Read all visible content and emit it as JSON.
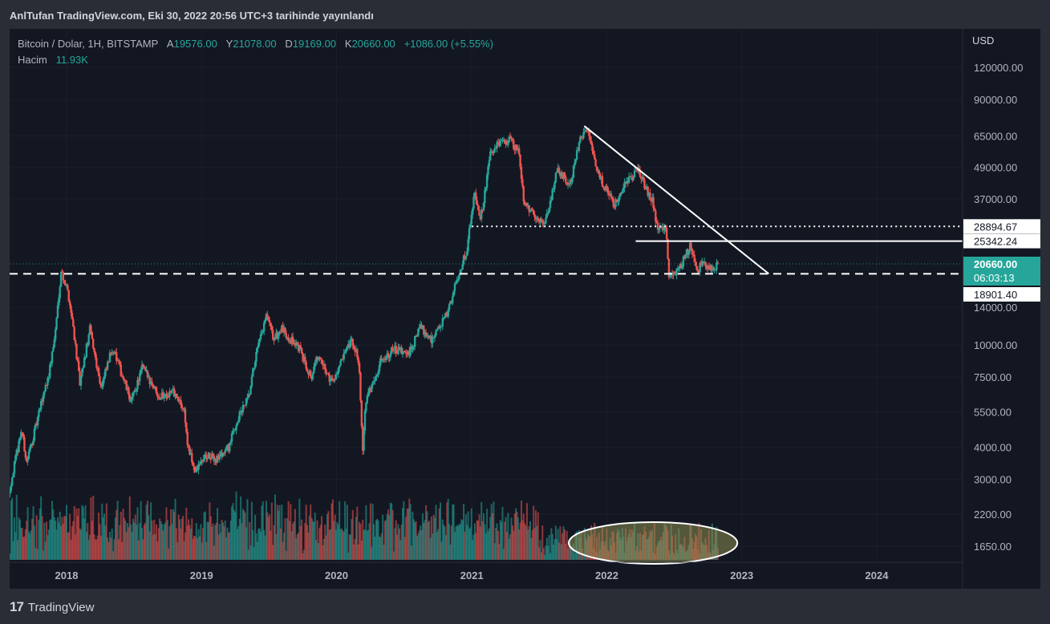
{
  "header": {
    "publisher": "AnlTufan TradingView.com, Eki 30, 2022 20:56 UTC+3 tarihinde yayınlandı"
  },
  "legend": {
    "symbol": "Bitcoin / Dolar, 1H, BITSTAMP",
    "open_label": "A",
    "open": "19576.00",
    "high_label": "Y",
    "high": "21078.00",
    "low_label": "D",
    "low": "19169.00",
    "close_label": "K",
    "close": "20660.00",
    "change": "+1086.00 (+5.55%)",
    "volume_label": "Hacim",
    "volume": "11.93K"
  },
  "footer": {
    "brand": "TradingView",
    "logo_glyph": "17"
  },
  "colors": {
    "up": "#26a69a",
    "down": "#ef5350",
    "background": "#131722",
    "frame": "#2a2d36",
    "price_badge": "#26a69a",
    "annotation": "#ffffff",
    "ellipse_fill": "#8c8c50"
  },
  "chart_data": {
    "type": "candlestick",
    "symbol": "Bitcoin / Dolar",
    "exchange": "BITSTAMP",
    "interval": "1H",
    "y_scale": "log",
    "y_unit": "USD",
    "y_ticks": [
      "120000.00",
      "90000.00",
      "65000.00",
      "49000.00",
      "37000.00",
      "14000.00",
      "10000.00",
      "7500.00",
      "5500.00",
      "4000.00",
      "3000.00",
      "2200.00",
      "1650.00"
    ],
    "x_ticks": [
      "2018",
      "2019",
      "2020",
      "2021",
      "2022",
      "2023",
      "2024"
    ],
    "price_labels": {
      "level_1": "28894.67",
      "level_2": "25342.24",
      "current": "20660.00",
      "countdown": "06:03:13",
      "level_3": "18901.40"
    },
    "price_series": [
      {
        "date": "2017-08-01",
        "price": 2800
      },
      {
        "date": "2017-09-01",
        "price": 4700
      },
      {
        "date": "2017-09-15",
        "price": 3500
      },
      {
        "date": "2017-10-10",
        "price": 4800
      },
      {
        "date": "2017-11-01",
        "price": 6600
      },
      {
        "date": "2017-11-15",
        "price": 7800
      },
      {
        "date": "2017-12-01",
        "price": 11000
      },
      {
        "date": "2017-12-17",
        "price": 19500
      },
      {
        "date": "2018-01-05",
        "price": 16000
      },
      {
        "date": "2018-01-20",
        "price": 11500
      },
      {
        "date": "2018-02-06",
        "price": 7000
      },
      {
        "date": "2018-03-05",
        "price": 11500
      },
      {
        "date": "2018-04-05",
        "price": 6800
      },
      {
        "date": "2018-05-05",
        "price": 9800
      },
      {
        "date": "2018-06-25",
        "price": 6000
      },
      {
        "date": "2018-07-25",
        "price": 8200
      },
      {
        "date": "2018-09-10",
        "price": 6300
      },
      {
        "date": "2018-10-15",
        "price": 6600
      },
      {
        "date": "2018-11-15",
        "price": 5600
      },
      {
        "date": "2018-11-25",
        "price": 4000
      },
      {
        "date": "2018-12-15",
        "price": 3200
      },
      {
        "date": "2019-01-10",
        "price": 3700
      },
      {
        "date": "2019-02-10",
        "price": 3600
      },
      {
        "date": "2019-03-15",
        "price": 4000
      },
      {
        "date": "2019-04-10",
        "price": 5200
      },
      {
        "date": "2019-05-10",
        "price": 6300
      },
      {
        "date": "2019-05-25",
        "price": 8700
      },
      {
        "date": "2019-06-26",
        "price": 13000
      },
      {
        "date": "2019-07-15",
        "price": 10500
      },
      {
        "date": "2019-08-05",
        "price": 11500
      },
      {
        "date": "2019-09-20",
        "price": 9800
      },
      {
        "date": "2019-10-25",
        "price": 7500
      },
      {
        "date": "2019-11-10",
        "price": 9000
      },
      {
        "date": "2019-12-20",
        "price": 7200
      },
      {
        "date": "2020-02-10",
        "price": 10300
      },
      {
        "date": "2020-03-01",
        "price": 8800
      },
      {
        "date": "2020-03-12",
        "price": 4000
      },
      {
        "date": "2020-03-20",
        "price": 6000
      },
      {
        "date": "2020-04-30",
        "price": 8700
      },
      {
        "date": "2020-06-01",
        "price": 9600
      },
      {
        "date": "2020-07-15",
        "price": 9200
      },
      {
        "date": "2020-08-15",
        "price": 11800
      },
      {
        "date": "2020-09-15",
        "price": 10500
      },
      {
        "date": "2020-10-25",
        "price": 13000
      },
      {
        "date": "2020-11-25",
        "price": 18500
      },
      {
        "date": "2020-12-20",
        "price": 24000
      },
      {
        "date": "2021-01-08",
        "price": 40000
      },
      {
        "date": "2021-01-25",
        "price": 31000
      },
      {
        "date": "2021-02-20",
        "price": 55000
      },
      {
        "date": "2021-03-13",
        "price": 60000
      },
      {
        "date": "2021-04-14",
        "price": 63000
      },
      {
        "date": "2021-05-10",
        "price": 55000
      },
      {
        "date": "2021-05-20",
        "price": 37000
      },
      {
        "date": "2021-06-22",
        "price": 31000
      },
      {
        "date": "2021-07-20",
        "price": 30000
      },
      {
        "date": "2021-08-20",
        "price": 48000
      },
      {
        "date": "2021-09-25",
        "price": 42000
      },
      {
        "date": "2021-10-20",
        "price": 64000
      },
      {
        "date": "2021-11-10",
        "price": 68000
      },
      {
        "date": "2021-12-05",
        "price": 47000
      },
      {
        "date": "2022-01-22",
        "price": 35000
      },
      {
        "date": "2022-02-15",
        "price": 42000
      },
      {
        "date": "2022-03-28",
        "price": 47500
      },
      {
        "date": "2022-05-05",
        "price": 36000
      },
      {
        "date": "2022-05-15",
        "price": 29000
      },
      {
        "date": "2022-06-10",
        "price": 28000
      },
      {
        "date": "2022-06-18",
        "price": 18000
      },
      {
        "date": "2022-07-25",
        "price": 21000
      },
      {
        "date": "2022-08-15",
        "price": 24500
      },
      {
        "date": "2022-09-05",
        "price": 19500
      },
      {
        "date": "2022-09-15",
        "price": 21000
      },
      {
        "date": "2022-10-15",
        "price": 19200
      },
      {
        "date": "2022-10-30",
        "price": 20660
      }
    ],
    "annotations": [
      {
        "type": "trend-line",
        "from": {
          "date": "2021-11-01",
          "price": 71000
        },
        "to": {
          "date": "2023-03-15",
          "price": 18901.4
        },
        "style": "solid"
      },
      {
        "type": "horizontal-line",
        "price": 28894.67,
        "from_date": "2021-01-01",
        "style": "dotted"
      },
      {
        "type": "horizontal-line",
        "price": 25342.24,
        "from_date": "2022-03-20",
        "style": "solid"
      },
      {
        "type": "horizontal-line",
        "price": 18901.4,
        "style": "dashed"
      },
      {
        "type": "ellipse",
        "around": "volume",
        "from_date": "2021-09-20",
        "to_date": "2022-12-20"
      }
    ]
  }
}
